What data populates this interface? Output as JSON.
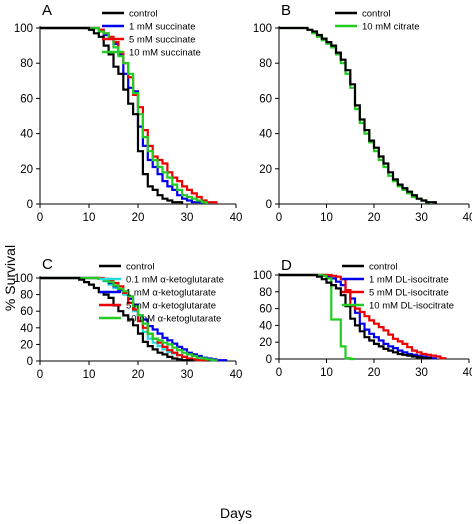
{
  "figure": {
    "ylabel": "% Survival",
    "xlabel": "Days"
  },
  "chart_data": [
    {
      "panel": "A",
      "type": "line",
      "xlim": [
        0,
        40
      ],
      "ylim": [
        0,
        100
      ],
      "xticks": [
        0,
        10,
        20,
        30,
        40
      ],
      "yticks": [
        0,
        20,
        40,
        60,
        80,
        100
      ],
      "legend_position": "top-right",
      "series": [
        {
          "name": "control",
          "color": "#000000",
          "x": [
            0,
            8,
            10,
            11,
            12,
            13,
            14,
            15,
            16,
            17,
            18,
            19,
            20,
            21,
            22,
            23,
            24,
            25,
            26,
            27,
            28,
            29
          ],
          "y": [
            100,
            100,
            99,
            97,
            95,
            90,
            85,
            78,
            74,
            65,
            57,
            51,
            30,
            17,
            10,
            8,
            5,
            3,
            2,
            1,
            1,
            0
          ]
        },
        {
          "name": "1 mM succinate",
          "color": "#0000ee",
          "x": [
            0,
            10,
            12,
            13,
            14,
            15,
            16,
            17,
            18,
            19,
            20,
            21,
            22,
            23,
            24,
            25,
            26,
            27,
            28,
            29,
            30,
            31,
            32,
            33
          ],
          "y": [
            100,
            100,
            99,
            96,
            94,
            91,
            85,
            74,
            66,
            64,
            44,
            33,
            25,
            21,
            17,
            13,
            10,
            8,
            5,
            3,
            2,
            1,
            1,
            0
          ]
        },
        {
          "name": "5 mM succinate",
          "color": "#ee0000",
          "x": [
            0,
            10,
            12,
            13,
            14,
            15,
            16,
            17,
            18,
            19,
            20,
            21,
            22,
            23,
            24,
            25,
            26,
            27,
            28,
            29,
            30,
            31,
            32,
            33,
            34,
            35,
            36
          ],
          "y": [
            100,
            100,
            99,
            97,
            95,
            92,
            86,
            80,
            72,
            62,
            55,
            42,
            33,
            27,
            25,
            23,
            18,
            15,
            13,
            10,
            8,
            6,
            4,
            2,
            1,
            1,
            0
          ]
        },
        {
          "name": "10 mM succinate",
          "color": "#22cc22",
          "x": [
            0,
            10,
            12,
            13,
            14,
            15,
            16,
            17,
            18,
            19,
            20,
            21,
            22,
            23,
            24,
            25,
            26,
            27,
            28,
            29,
            30,
            31,
            32,
            33,
            34
          ],
          "y": [
            100,
            100,
            98,
            97,
            94,
            89,
            84,
            80,
            74,
            63,
            51,
            38,
            30,
            25,
            21,
            18,
            15,
            11,
            8,
            5,
            4,
            3,
            2,
            1,
            0
          ]
        }
      ]
    },
    {
      "panel": "B",
      "type": "line",
      "xlim": [
        0,
        40
      ],
      "ylim": [
        0,
        100
      ],
      "xticks": [
        0,
        10,
        20,
        30,
        40
      ],
      "yticks": [
        0,
        20,
        40,
        60,
        80,
        100
      ],
      "legend_position": "top-right",
      "series": [
        {
          "name": "control",
          "color": "#000000",
          "x": [
            0,
            5,
            6,
            7,
            8,
            9,
            10,
            11,
            12,
            13,
            14,
            15,
            16,
            17,
            18,
            19,
            20,
            21,
            22,
            23,
            24,
            25,
            26,
            27,
            28,
            29,
            30,
            31,
            32,
            33
          ],
          "y": [
            100,
            100,
            99,
            98,
            96,
            94,
            92,
            90,
            86,
            82,
            76,
            68,
            56,
            48,
            42,
            36,
            32,
            27,
            23,
            18,
            14,
            11,
            9,
            7,
            5,
            3,
            2,
            1,
            1,
            0
          ]
        },
        {
          "name": "10 mM citrate",
          "color": "#22cc22",
          "x": [
            0,
            5,
            6,
            7,
            8,
            9,
            10,
            11,
            12,
            13,
            14,
            15,
            16,
            17,
            18,
            19,
            20,
            21,
            22,
            23,
            24,
            25,
            26,
            27,
            28,
            29,
            30,
            31,
            32
          ],
          "y": [
            100,
            100,
            99,
            97,
            95,
            93,
            91,
            89,
            85,
            80,
            74,
            66,
            54,
            46,
            40,
            35,
            30,
            25,
            21,
            16,
            13,
            10,
            8,
            6,
            4,
            3,
            2,
            1,
            0
          ]
        }
      ]
    },
    {
      "panel": "C",
      "type": "line",
      "xlim": [
        0,
        40
      ],
      "ylim": [
        0,
        100
      ],
      "xticks": [
        0,
        10,
        20,
        30,
        40
      ],
      "yticks": [
        0,
        20,
        40,
        60,
        80,
        100
      ],
      "legend_position": "top-right",
      "series": [
        {
          "name": "control",
          "color": "#000000",
          "x": [
            0,
            7,
            8,
            9,
            10,
            11,
            12,
            13,
            14,
            15,
            16,
            17,
            18,
            19,
            20,
            21,
            22,
            23,
            24,
            25,
            26,
            27,
            28,
            29,
            30,
            31
          ],
          "y": [
            100,
            100,
            98,
            95,
            92,
            88,
            83,
            80,
            76,
            67,
            60,
            55,
            50,
            43,
            33,
            23,
            18,
            14,
            10,
            8,
            5,
            3,
            2,
            1,
            1,
            0
          ]
        },
        {
          "name": "0.1 mM α-ketoglutarate",
          "color": "#22dddd",
          "x": [
            0,
            10,
            12,
            13,
            14,
            15,
            16,
            17,
            18,
            19,
            20,
            21,
            22,
            23,
            24,
            25,
            26,
            27,
            28,
            29,
            30,
            31,
            32,
            33
          ],
          "y": [
            100,
            100,
            99,
            96,
            92,
            88,
            84,
            80,
            70,
            60,
            50,
            35,
            27,
            22,
            18,
            14,
            11,
            9,
            7,
            5,
            3,
            2,
            1,
            0
          ]
        },
        {
          "name": "1 mM α-ketoglutarate",
          "color": "#0000ee",
          "x": [
            0,
            10,
            12,
            13,
            14,
            15,
            16,
            17,
            18,
            19,
            20,
            21,
            22,
            23,
            24,
            25,
            26,
            27,
            28,
            29,
            30,
            31,
            32,
            33,
            34,
            35,
            36,
            37,
            38
          ],
          "y": [
            100,
            100,
            99,
            97,
            94,
            90,
            86,
            82,
            75,
            68,
            55,
            50,
            42,
            38,
            33,
            28,
            25,
            21,
            17,
            14,
            10,
            8,
            6,
            4,
            3,
            2,
            1,
            1,
            0
          ]
        },
        {
          "name": "5 mM α-ketoglutarate",
          "color": "#ee0000",
          "x": [
            0,
            11,
            13,
            14,
            15,
            16,
            17,
            18,
            19,
            20,
            21,
            22,
            23,
            24,
            25,
            26,
            27,
            28,
            29,
            30,
            31,
            32,
            33,
            34
          ],
          "y": [
            100,
            100,
            99,
            97,
            94,
            90,
            82,
            70,
            62,
            48,
            40,
            33,
            27,
            22,
            17,
            13,
            10,
            7,
            5,
            3,
            2,
            1,
            1,
            0
          ]
        },
        {
          "name": "10 mM α-ketoglutarate",
          "color": "#22cc22",
          "x": [
            0,
            10,
            12,
            13,
            14,
            15,
            16,
            17,
            18,
            19,
            20,
            21,
            22,
            23,
            24,
            25,
            26,
            27,
            28,
            29,
            30,
            31,
            32,
            33,
            34,
            35,
            36
          ],
          "y": [
            100,
            100,
            99,
            97,
            95,
            91,
            87,
            84,
            78,
            66,
            55,
            45,
            33,
            27,
            25,
            22,
            20,
            16,
            13,
            10,
            8,
            6,
            4,
            3,
            2,
            1,
            0
          ]
        }
      ]
    },
    {
      "panel": "D",
      "type": "line",
      "xlim": [
        0,
        40
      ],
      "ylim": [
        0,
        100
      ],
      "xticks": [
        0,
        10,
        20,
        30,
        40
      ],
      "yticks": [
        0,
        20,
        40,
        60,
        80,
        100
      ],
      "legend_position": "top-right",
      "series": [
        {
          "name": "control",
          "color": "#000000",
          "x": [
            0,
            7,
            8,
            9,
            10,
            11,
            12,
            13,
            14,
            15,
            16,
            17,
            18,
            19,
            20,
            21,
            22,
            23,
            24,
            25,
            26,
            27,
            28,
            29,
            30,
            31,
            32
          ],
          "y": [
            100,
            100,
            98,
            95,
            91,
            88,
            84,
            76,
            63,
            48,
            40,
            33,
            26,
            22,
            18,
            15,
            12,
            10,
            8,
            6,
            5,
            4,
            3,
            2,
            1,
            1,
            0
          ]
        },
        {
          "name": "1 mM DL-isocitrate",
          "color": "#0000ee",
          "x": [
            0,
            9,
            10,
            11,
            12,
            13,
            14,
            15,
            16,
            17,
            18,
            19,
            20,
            21,
            22,
            23,
            24,
            25,
            26,
            27,
            28,
            29,
            30,
            31,
            32,
            33
          ],
          "y": [
            100,
            100,
            98,
            96,
            92,
            88,
            80,
            72,
            55,
            42,
            35,
            30,
            26,
            22,
            18,
            15,
            13,
            10,
            8,
            6,
            5,
            4,
            3,
            2,
            1,
            0
          ]
        },
        {
          "name": "5 mM DL-isocitrate",
          "color": "#ee0000",
          "x": [
            0,
            10,
            11,
            12,
            13,
            14,
            15,
            16,
            17,
            18,
            19,
            20,
            21,
            22,
            23,
            24,
            25,
            26,
            27,
            28,
            29,
            30,
            31,
            32,
            33,
            34,
            35
          ],
          "y": [
            100,
            100,
            99,
            98,
            95,
            82,
            63,
            60,
            56,
            51,
            46,
            42,
            38,
            34,
            29,
            24,
            21,
            18,
            14,
            10,
            8,
            6,
            5,
            4,
            3,
            1,
            0
          ]
        },
        {
          "name": "10 mM DL-isocitrate",
          "color": "#22cc22",
          "x": [
            0,
            8,
            9,
            10,
            11,
            12,
            13,
            14,
            15,
            16
          ],
          "y": [
            100,
            100,
            99,
            96,
            47,
            47,
            15,
            1,
            0,
            0
          ]
        }
      ]
    }
  ]
}
